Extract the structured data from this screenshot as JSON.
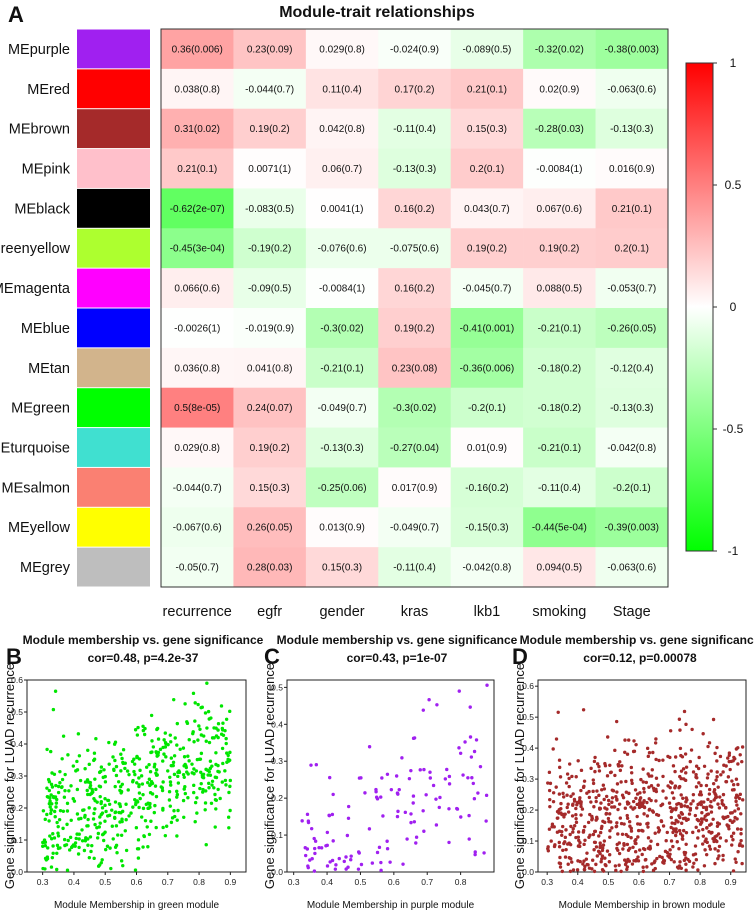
{
  "panel_letters": [
    "A",
    "B",
    "C",
    "D"
  ],
  "chart_data": [
    {
      "type": "heatmap",
      "title": "Module-trait relationships",
      "columns": [
        "recurrence",
        "egfr",
        "gender",
        "kras",
        "lkb1",
        "smoking",
        "Stage"
      ],
      "rows": [
        {
          "name": "MEpurple",
          "color": "#a020f0",
          "values": [
            0.36,
            0.23,
            0.029,
            -0.024,
            -0.089,
            -0.32,
            -0.38
          ],
          "labels": [
            "0.36(0.006)",
            "0.23(0.09)",
            "0.029(0.8)",
            "-0.024(0.9)",
            "-0.089(0.5)",
            "-0.32(0.02)",
            "-0.38(0.003)"
          ]
        },
        {
          "name": "MEred",
          "color": "#ff0000",
          "values": [
            0.038,
            -0.044,
            0.11,
            0.17,
            0.21,
            0.02,
            -0.063
          ],
          "labels": [
            "0.038(0.8)",
            "-0.044(0.7)",
            "0.11(0.4)",
            "0.17(0.2)",
            "0.21(0.1)",
            "0.02(0.9)",
            "-0.063(0.6)"
          ]
        },
        {
          "name": "MEbrown",
          "color": "#a52a2a",
          "values": [
            0.31,
            0.19,
            0.042,
            -0.11,
            0.15,
            -0.28,
            -0.13
          ],
          "labels": [
            "0.31(0.02)",
            "0.19(0.2)",
            "0.042(0.8)",
            "-0.11(0.4)",
            "0.15(0.3)",
            "-0.28(0.03)",
            "-0.13(0.3)"
          ]
        },
        {
          "name": "MEpink",
          "color": "#ffc0cb",
          "values": [
            0.21,
            0.0071,
            0.06,
            -0.13,
            0.2,
            -0.0084,
            0.016
          ],
          "labels": [
            "0.21(0.1)",
            "0.0071(1)",
            "0.06(0.7)",
            "-0.13(0.3)",
            "0.2(0.1)",
            "-0.0084(1)",
            "0.016(0.9)"
          ]
        },
        {
          "name": "MEblack",
          "color": "#000000",
          "values": [
            -0.62,
            -0.083,
            0.0041,
            0.16,
            0.043,
            0.067,
            0.21
          ],
          "labels": [
            "-0.62(2e-07)",
            "-0.083(0.5)",
            "0.0041(1)",
            "0.16(0.2)",
            "0.043(0.7)",
            "0.067(0.6)",
            "0.21(0.1)"
          ]
        },
        {
          "name": "MEgreenyellow",
          "color": "#adff2f",
          "values": [
            -0.45,
            -0.19,
            -0.076,
            -0.075,
            0.19,
            0.19,
            0.2
          ],
          "labels": [
            "-0.45(3e-04)",
            "-0.19(0.2)",
            "-0.076(0.6)",
            "-0.075(0.6)",
            "0.19(0.2)",
            "0.19(0.2)",
            "0.2(0.1)"
          ]
        },
        {
          "name": "MEmagenta",
          "color": "#ff00ff",
          "values": [
            0.066,
            -0.09,
            -0.0084,
            0.16,
            -0.045,
            0.088,
            -0.053
          ],
          "labels": [
            "0.066(0.6)",
            "-0.09(0.5)",
            "-0.0084(1)",
            "0.16(0.2)",
            "-0.045(0.7)",
            "0.088(0.5)",
            "-0.053(0.7)"
          ]
        },
        {
          "name": "MEblue",
          "color": "#0000ff",
          "values": [
            -0.0026,
            -0.019,
            -0.3,
            0.19,
            -0.41,
            -0.21,
            -0.26
          ],
          "labels": [
            "-0.0026(1)",
            "-0.019(0.9)",
            "-0.3(0.02)",
            "0.19(0.2)",
            "-0.41(0.001)",
            "-0.21(0.1)",
            "-0.26(0.05)"
          ]
        },
        {
          "name": "MEtan",
          "color": "#d2b48c",
          "values": [
            0.036,
            0.041,
            -0.21,
            0.23,
            -0.36,
            -0.18,
            -0.12
          ],
          "labels": [
            "0.036(0.8)",
            "0.041(0.8)",
            "-0.21(0.1)",
            "0.23(0.08)",
            "-0.36(0.006)",
            "-0.18(0.2)",
            "-0.12(0.4)"
          ]
        },
        {
          "name": "MEgreen",
          "color": "#00ff00",
          "values": [
            0.5,
            0.24,
            -0.049,
            -0.3,
            -0.2,
            -0.18,
            -0.13
          ],
          "labels": [
            "0.5(8e-05)",
            "0.24(0.07)",
            "-0.049(0.7)",
            "-0.3(0.02)",
            "-0.2(0.1)",
            "-0.18(0.2)",
            "-0.13(0.3)"
          ]
        },
        {
          "name": "MEturquoise",
          "color": "#40e0d0",
          "values": [
            0.029,
            0.19,
            -0.13,
            -0.27,
            0.01,
            -0.21,
            -0.042
          ],
          "labels": [
            "0.029(0.8)",
            "0.19(0.2)",
            "-0.13(0.3)",
            "-0.27(0.04)",
            "0.01(0.9)",
            "-0.21(0.1)",
            "-0.042(0.8)"
          ]
        },
        {
          "name": "MEsalmon",
          "color": "#fa8072",
          "values": [
            -0.044,
            0.15,
            -0.25,
            0.017,
            -0.16,
            -0.11,
            -0.2
          ],
          "labels": [
            "-0.044(0.7)",
            "0.15(0.3)",
            "-0.25(0.06)",
            "0.017(0.9)",
            "-0.16(0.2)",
            "-0.11(0.4)",
            "-0.2(0.1)"
          ]
        },
        {
          "name": "MEyellow",
          "color": "#ffff00",
          "values": [
            -0.067,
            0.26,
            0.013,
            -0.049,
            -0.15,
            -0.44,
            -0.39
          ],
          "labels": [
            "-0.067(0.6)",
            "0.26(0.05)",
            "0.013(0.9)",
            "-0.049(0.7)",
            "-0.15(0.3)",
            "-0.44(5e-04)",
            "-0.39(0.003)"
          ]
        },
        {
          "name": "MEgrey",
          "color": "#bebebe",
          "values": [
            -0.05,
            0.28,
            0.15,
            -0.11,
            -0.042,
            0.094,
            -0.063
          ],
          "labels": [
            "-0.05(0.7)",
            "0.28(0.03)",
            "0.15(0.3)",
            "-0.11(0.4)",
            "-0.042(0.8)",
            "0.094(0.5)",
            "-0.063(0.6)"
          ]
        }
      ],
      "colorscale": {
        "min": -1,
        "max": 1,
        "ticks": [
          "1",
          "0.5",
          "0",
          "-0.5",
          "-1"
        ],
        "low_color": "#00ff00",
        "mid_color": "#ffffff",
        "high_color": "#ff0000"
      }
    },
    {
      "type": "scatter",
      "title": "Module membership vs. gene significance",
      "subtitle": "cor=0.48, p=4.2e-37",
      "xlabel": "Module Membership in green module",
      "ylabel": "Gene significance for LUAD recurrence",
      "point_color": "#00e600",
      "xlim": [
        0.25,
        0.95
      ],
      "ylim": [
        0,
        0.6
      ],
      "xticks": [
        "0.3",
        "0.4",
        "0.5",
        "0.6",
        "0.7",
        "0.8",
        "0.9"
      ],
      "yticks": [
        "0.0",
        "0.1",
        "0.2",
        "0.3",
        "0.4",
        "0.5",
        "0.6"
      ],
      "sample": {
        "n": 560,
        "x_range": [
          0.3,
          0.9
        ],
        "seed": 11,
        "y_start": 0.16,
        "y_end": 0.36,
        "spread": 0.11
      }
    },
    {
      "type": "scatter",
      "title": "Module membership vs. gene significance",
      "subtitle": "cor=0.43, p=1e-07",
      "xlabel": "Module Membership in purple module",
      "ylabel": "Gene significance for LUAD recurrence",
      "point_color": "#a020f0",
      "xlim": [
        0.28,
        0.9
      ],
      "ylim": [
        0,
        0.52
      ],
      "xticks": [
        "0.3",
        "0.4",
        "0.5",
        "0.6",
        "0.7",
        "0.8"
      ],
      "yticks": [
        "0.0",
        "0.1",
        "0.2",
        "0.3",
        "0.4",
        "0.5"
      ],
      "sample": {
        "n": 140,
        "x_range": [
          0.32,
          0.88
        ],
        "seed": 23,
        "y_start": 0.07,
        "y_end": 0.28,
        "spread": 0.1
      }
    },
    {
      "type": "scatter",
      "title": "Module membership vs. gene significance",
      "subtitle": "cor=0.12, p=0.00078",
      "xlabel": "Module Membership in brown module",
      "ylabel": "Gene significance for LUAD recurrence",
      "point_color": "#a52a2a",
      "xlim": [
        0.27,
        0.95
      ],
      "ylim": [
        0,
        0.62
      ],
      "xticks": [
        "0.3",
        "0.4",
        "0.5",
        "0.6",
        "0.7",
        "0.8",
        "0.9"
      ],
      "yticks": [
        "0.0",
        "0.1",
        "0.2",
        "0.3",
        "0.4",
        "0.5",
        "0.6"
      ],
      "sample": {
        "n": 760,
        "x_range": [
          0.3,
          0.94
        ],
        "seed": 37,
        "y_start": 0.15,
        "y_end": 0.2,
        "spread": 0.12
      }
    }
  ]
}
